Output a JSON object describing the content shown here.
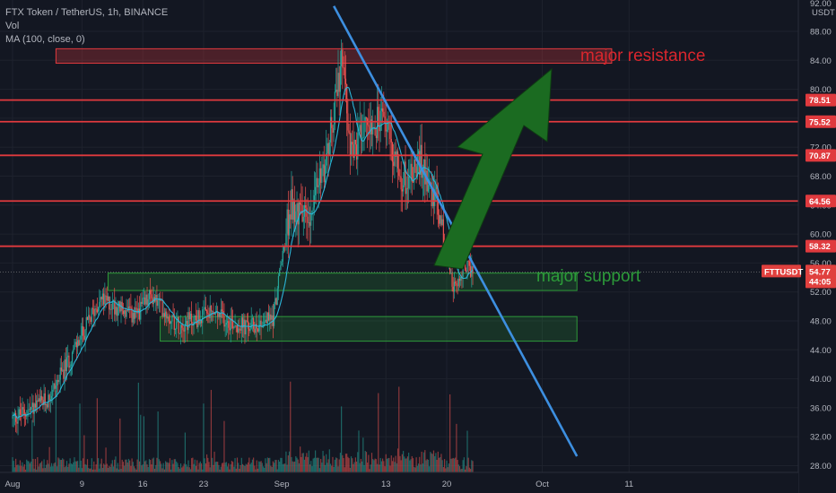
{
  "header": {
    "title": "FTX Token / TetherUS, 1h, BINANCE",
    "indicator_vol": "Vol",
    "indicator_ma": "MA (100, close, 0)"
  },
  "price_axis": {
    "currency": "USDT",
    "top_partial": "92.00",
    "ticks": [
      "88.00",
      "84.00",
      "80.00",
      "76.00",
      "72.00",
      "68.00",
      "64.00",
      "60.00",
      "56.00",
      "52.00",
      "48.00",
      "44.00",
      "40.00",
      "36.00",
      "32.00",
      "28.00"
    ]
  },
  "time_axis": {
    "ticks": [
      "Aug",
      "9",
      "16",
      "23",
      "Sep",
      "13",
      "20",
      "Oct",
      "11"
    ]
  },
  "symbol_tag": "FTTUSDT",
  "current_price": {
    "value": "54.77",
    "countdown": "44:05"
  },
  "resistance_labels": [
    "78.51",
    "75.52",
    "70.87",
    "64.56",
    "58.32"
  ],
  "annotations": {
    "resistance_text": "major resistance",
    "support_text": "major support"
  },
  "colors": {
    "background": "#131722",
    "up": "#26a69a",
    "down": "#ef5350",
    "ma": "#2bb5d8",
    "trendline": "#3d8fe0",
    "resistance": "#e03a3e",
    "support": "#2e9a3a",
    "arrow": "#1b6b21",
    "resistance_text": "#d9262d",
    "support_text": "#2c9b39"
  },
  "chart_data": {
    "type": "candlestick",
    "title": "FTX Token / TetherUS, 1h, BINANCE",
    "y_range": [
      27,
      92
    ],
    "x_range": [
      "2021-08-01",
      "2021-10-12"
    ],
    "resistance_levels": [
      78.51,
      75.52,
      70.87,
      64.56,
      58.32
    ],
    "zones": [
      {
        "label": "major resistance",
        "from": "2021-08-06",
        "to": "2021-10-09",
        "low": 83.6,
        "high": 85.6
      },
      {
        "label": "major support",
        "from": "2021-08-12",
        "to": "2021-10-05",
        "low": 52.2,
        "high": 54.6
      },
      {
        "label": "",
        "from": "2021-08-18",
        "to": "2021-10-05",
        "low": 45.2,
        "high": 48.6
      }
    ],
    "trendline": {
      "from": {
        "date": "2021-09-07",
        "price": 91.5
      },
      "to": {
        "date": "2021-10-05",
        "price": 29.3
      }
    },
    "price_path": [
      {
        "date": "2021-08-01",
        "price": 34.5
      },
      {
        "date": "2021-08-05",
        "price": 37.0
      },
      {
        "date": "2021-08-09",
        "price": 46.0
      },
      {
        "date": "2021-08-11",
        "price": 51.0
      },
      {
        "date": "2021-08-13",
        "price": 50.0
      },
      {
        "date": "2021-08-15",
        "price": 48.5
      },
      {
        "date": "2021-08-17",
        "price": 51.5
      },
      {
        "date": "2021-08-20",
        "price": 47.5
      },
      {
        "date": "2021-08-24",
        "price": 49.0
      },
      {
        "date": "2021-08-28",
        "price": 47.0
      },
      {
        "date": "2021-08-31",
        "price": 48.5
      },
      {
        "date": "2021-09-02",
        "price": 64.0
      },
      {
        "date": "2021-09-04",
        "price": 62.5
      },
      {
        "date": "2021-09-06",
        "price": 70.0
      },
      {
        "date": "2021-09-08",
        "price": 84.0
      },
      {
        "date": "2021-09-09",
        "price": 71.0
      },
      {
        "date": "2021-09-11",
        "price": 76.0
      },
      {
        "date": "2021-09-13",
        "price": 75.0
      },
      {
        "date": "2021-09-15",
        "price": 67.5
      },
      {
        "date": "2021-09-17",
        "price": 70.0
      },
      {
        "date": "2021-09-19",
        "price": 64.0
      },
      {
        "date": "2021-09-20",
        "price": 57.0
      },
      {
        "date": "2021-09-21",
        "price": 52.0
      },
      {
        "date": "2021-09-22",
        "price": 56.0
      },
      {
        "date": "2021-09-23",
        "price": 54.77
      }
    ],
    "ma_series": {
      "name": "MA (100, close, 0)"
    },
    "volume_series": {
      "name": "Vol"
    }
  }
}
